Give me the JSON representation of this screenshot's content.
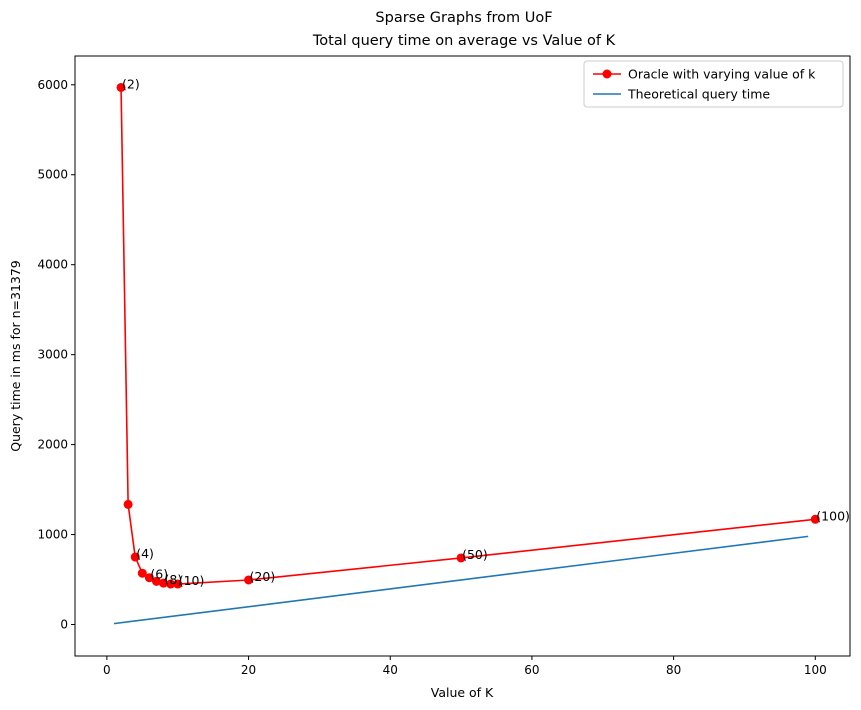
{
  "chart_data": {
    "type": "line",
    "title": "Sparse Graphs from UoF",
    "subtitle": "Total query time on average vs Value of K",
    "xlabel": "Value of K",
    "ylabel": "Query time in ms for n=31379",
    "xlim": [
      -4.5,
      104.9
    ],
    "ylim": [
      -350,
      6320
    ],
    "xticks": [
      0,
      20,
      40,
      60,
      80,
      100
    ],
    "yticks": [
      0,
      1000,
      2000,
      3000,
      4000,
      5000,
      6000
    ],
    "grid": false,
    "legend_position": "top-right",
    "series": [
      {
        "name": "Oracle with varying value of k",
        "color": "#ff0000",
        "marker": "circle",
        "x": [
          2,
          3,
          4,
          5,
          6,
          7,
          8,
          9,
          10,
          20,
          50,
          100
        ],
        "y": [
          5970,
          1335,
          750,
          570,
          520,
          480,
          460,
          450,
          450,
          495,
          740,
          1170
        ]
      },
      {
        "name": "Theoretical query time",
        "color": "#1f77b4",
        "marker": "none",
        "x": [
          1,
          99
        ],
        "y": [
          10,
          980
        ]
      }
    ],
    "annotations": [
      {
        "text": "(2)",
        "x": 2,
        "y": 5970
      },
      {
        "text": "(4)",
        "x": 4,
        "y": 750
      },
      {
        "text": "(6)",
        "x": 6,
        "y": 520
      },
      {
        "text": "(8)",
        "x": 8,
        "y": 460
      },
      {
        "text": "(10)",
        "x": 10,
        "y": 450
      },
      {
        "text": "(20)",
        "x": 20,
        "y": 495
      },
      {
        "text": "(50)",
        "x": 50,
        "y": 740
      },
      {
        "text": "(100)",
        "x": 100,
        "y": 1170
      }
    ]
  }
}
